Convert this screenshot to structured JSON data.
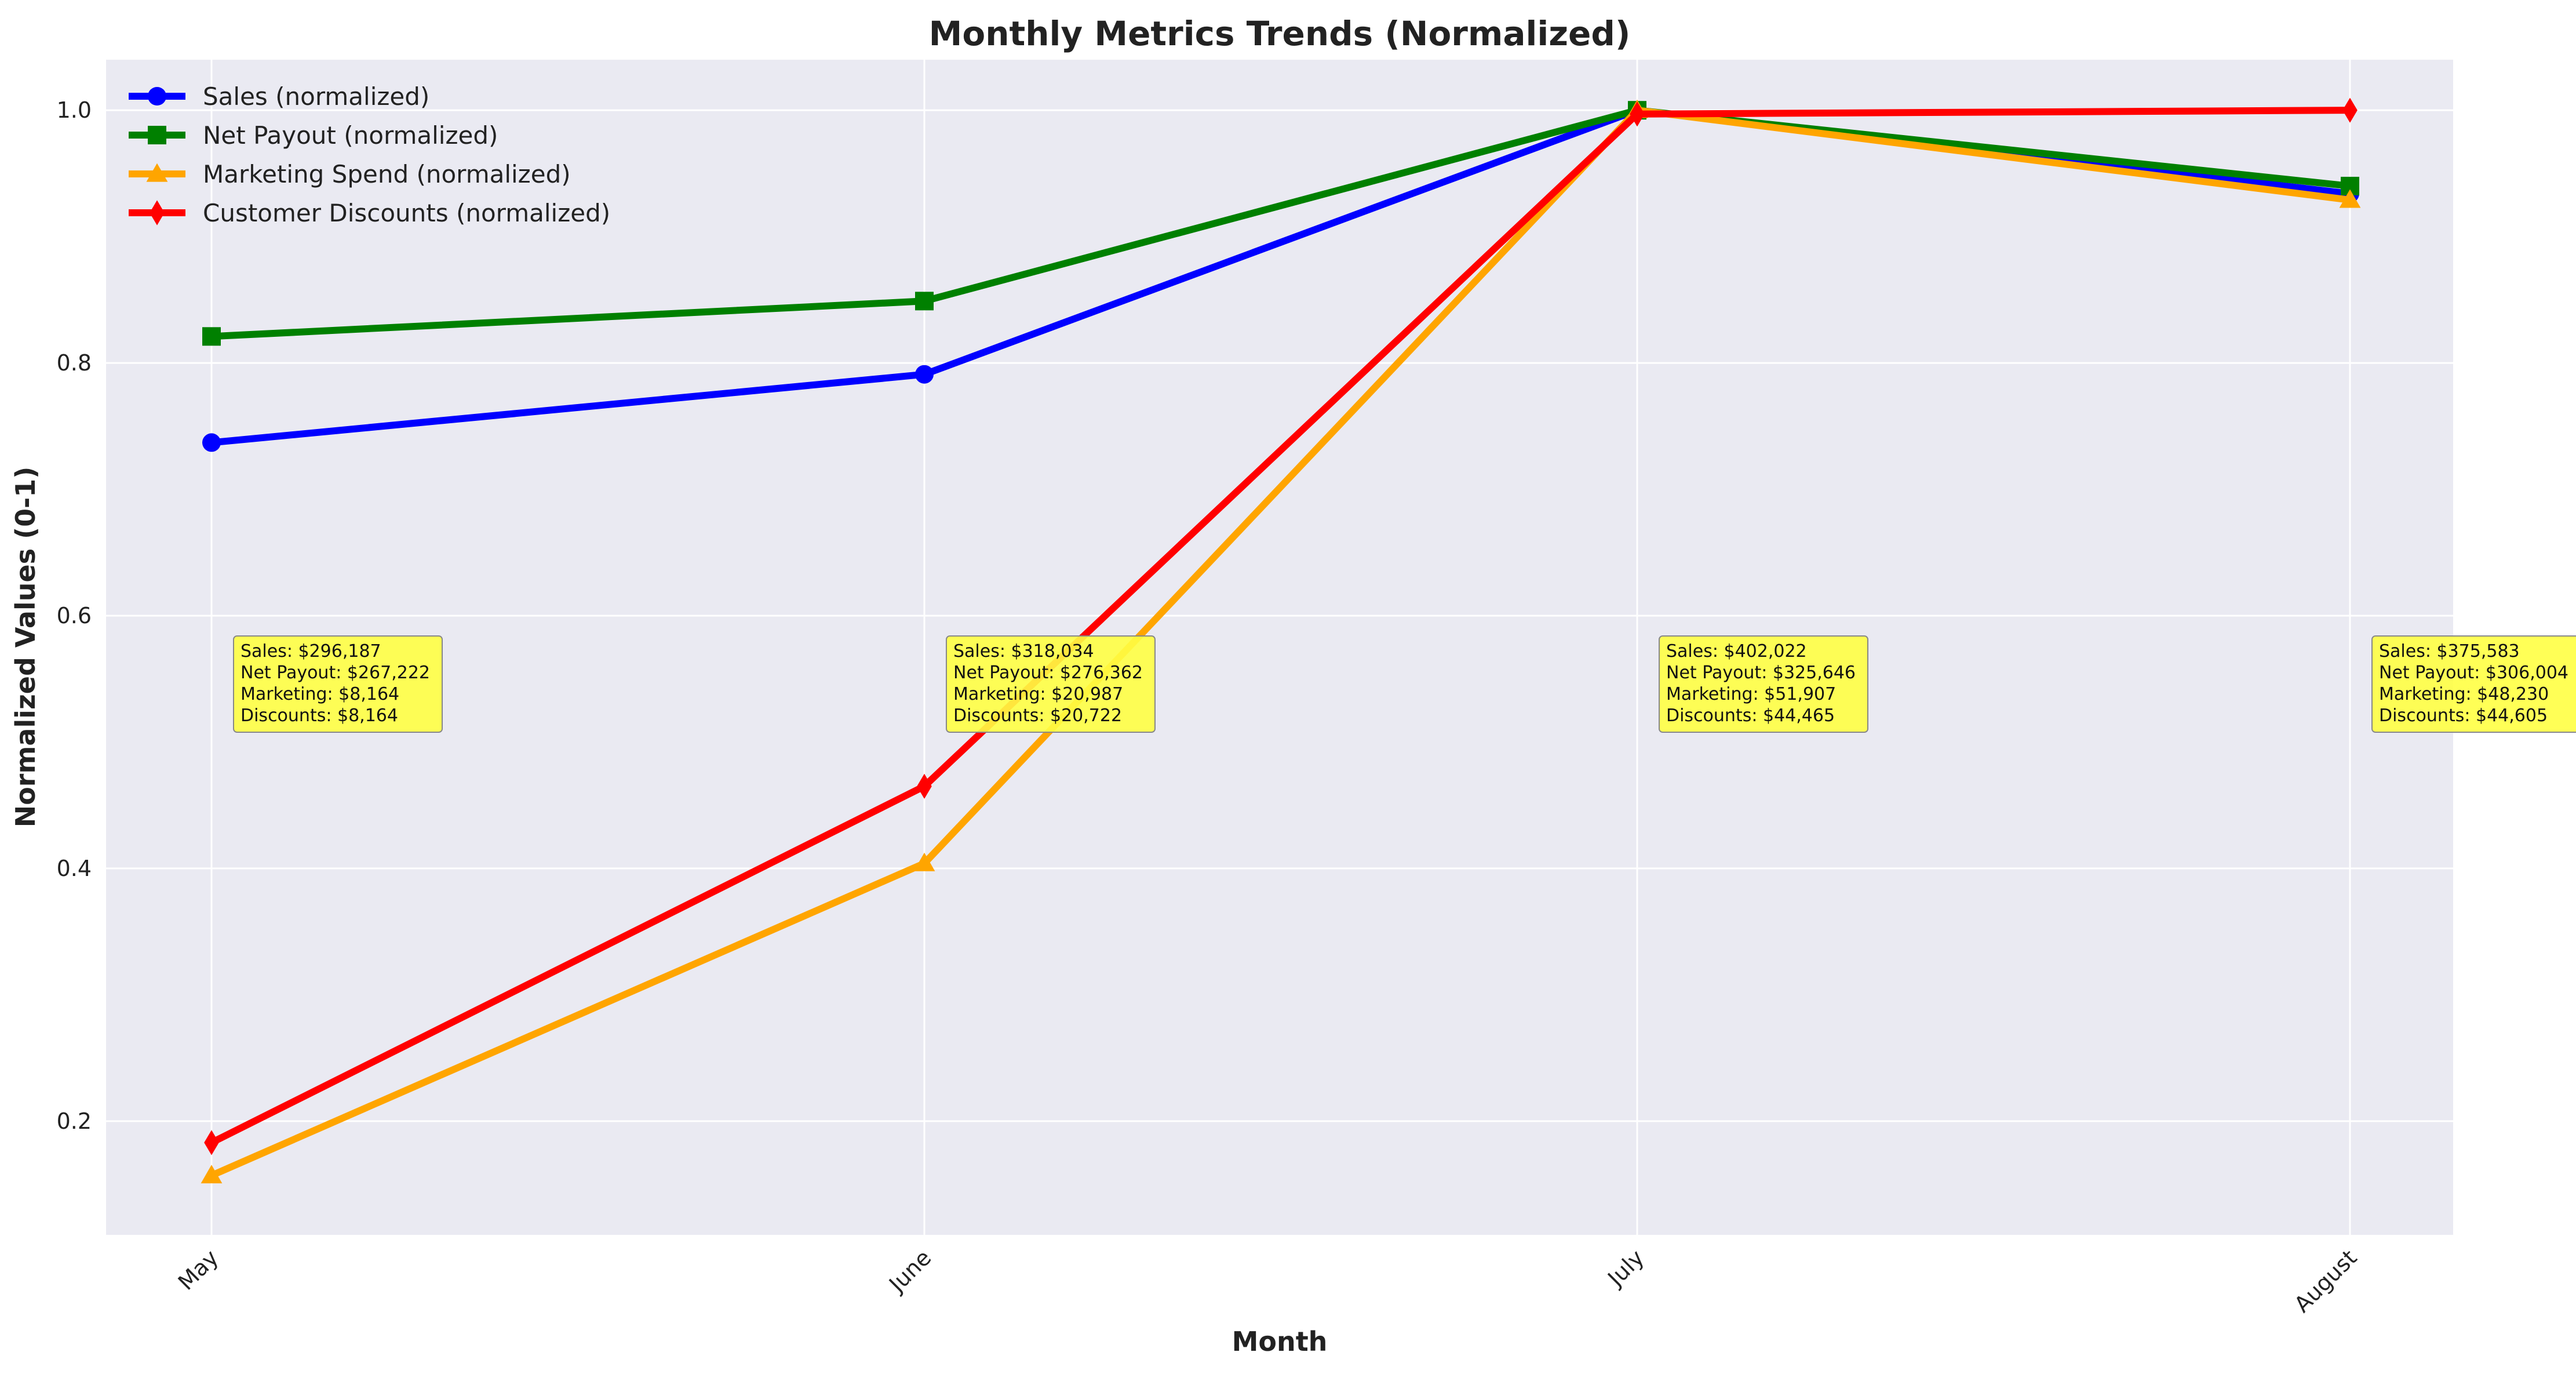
{
  "chart_data": {
    "type": "line",
    "title": "Monthly Metrics Trends (Normalized)",
    "xlabel": "Month",
    "ylabel": "Normalized Values (0-1)",
    "categories": [
      "May",
      "June",
      "July",
      "August"
    ],
    "ylim": [
      0.11,
      1.04
    ],
    "yticks": [
      0.2,
      0.4,
      0.6,
      0.8,
      1.0
    ],
    "ytick_labels": [
      "0.2",
      "0.4",
      "0.6",
      "0.8",
      "1.0"
    ],
    "grid": true,
    "legend_position": "top-left",
    "series": [
      {
        "name": "Sales (normalized)",
        "color": "#0000ff",
        "marker": "circle",
        "values": [
          0.737,
          0.791,
          1.0,
          0.934
        ]
      },
      {
        "name": "Net Payout (normalized)",
        "color": "#008000",
        "marker": "square",
        "values": [
          0.821,
          0.849,
          1.0,
          0.94
        ]
      },
      {
        "name": "Marketing Spend (normalized)",
        "color": "#ffa500",
        "marker": "triangle",
        "values": [
          0.157,
          0.404,
          1.0,
          0.929
        ]
      },
      {
        "name": "Customer Discounts (normalized)",
        "color": "#ff0000",
        "marker": "diamond",
        "values": [
          0.183,
          0.465,
          0.997,
          1.0
        ]
      }
    ],
    "annotations": [
      {
        "category": "May",
        "lines": [
          "Sales: $296,187",
          "Net Payout: $267,222",
          "Marketing: $8,164",
          "Discounts: $8,164"
        ]
      },
      {
        "category": "June",
        "lines": [
          "Sales: $318,034",
          "Net Payout: $276,362",
          "Marketing: $20,987",
          "Discounts: $20,722"
        ]
      },
      {
        "category": "July",
        "lines": [
          "Sales: $402,022",
          "Net Payout: $325,646",
          "Marketing: $51,907",
          "Discounts: $44,465"
        ]
      },
      {
        "category": "August",
        "lines": [
          "Sales: $375,583",
          "Net Payout: $306,004",
          "Marketing: $48,230",
          "Discounts: $44,605"
        ]
      }
    ],
    "colors": {
      "plot_background": "#eaeaf2",
      "grid": "#ffffff",
      "annotation_fill": "#ffff44",
      "annotation_border": "#888888"
    }
  }
}
